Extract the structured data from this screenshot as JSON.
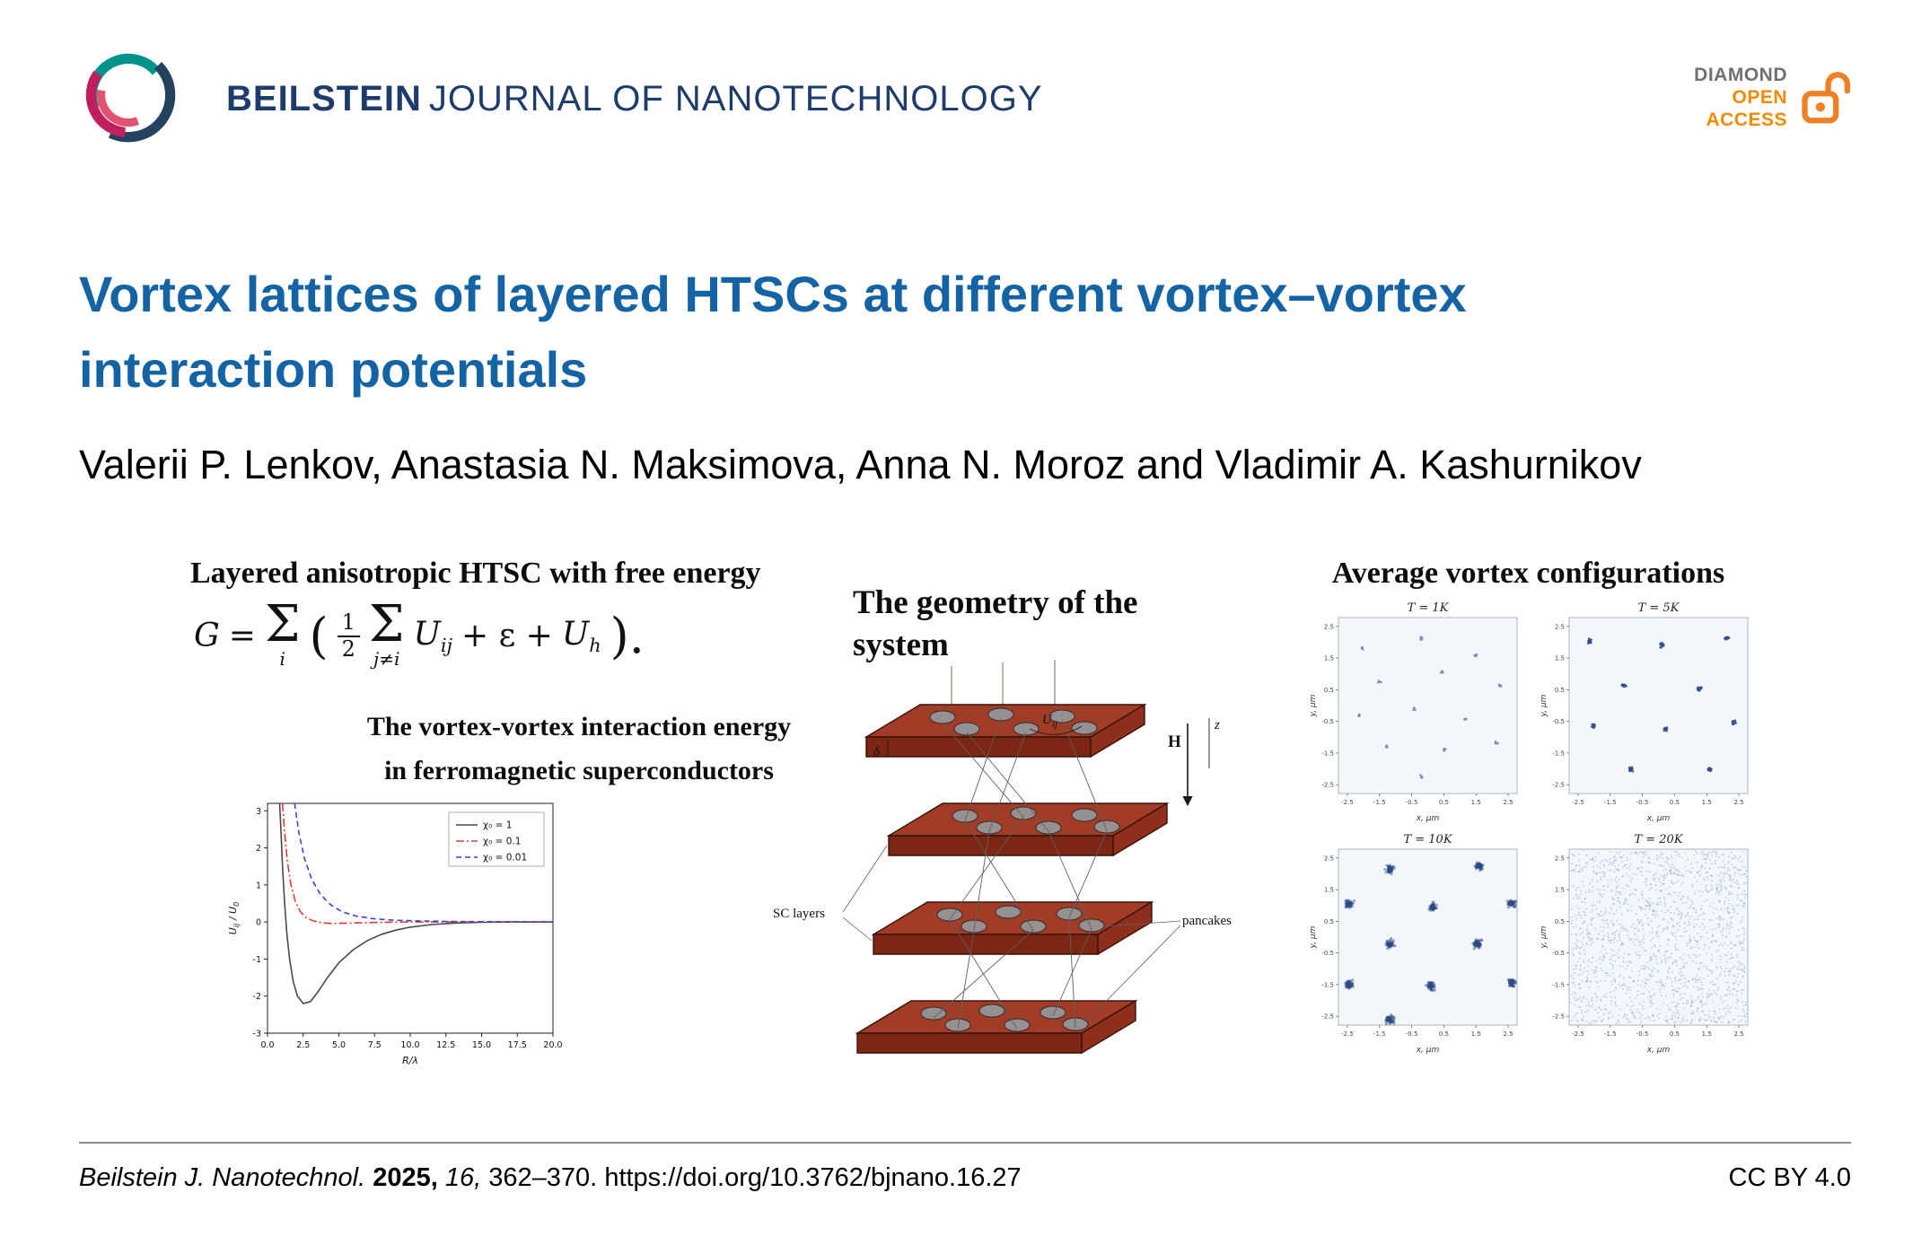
{
  "header": {
    "journal_bold": "BEILSTEIN",
    "journal_rest": "JOURNAL OF NANOTECHNOLOGY",
    "badge": {
      "diamond": "DIAMOND",
      "open": "OPEN",
      "access": "ACCESS"
    }
  },
  "title": {
    "lines": [
      "Vortex lattices of layered HTSCs at different vortex–vortex",
      "interaction potentials"
    ]
  },
  "authors": "Valerii P. Lenkov, Anastasia N. Maksimova, Anna N. Moroz and Vladimir A. Kashurnikov",
  "figure": {
    "left": {
      "heading": "Layered anisotropic HTSC with free energy",
      "formula": {
        "lhs": "G",
        "eq": "=",
        "sum1": "Σ",
        "sub1": "i",
        "open": "(",
        "num": "1",
        "den": "2",
        "sum2": "Σ",
        "sub2": "j≠i",
        "u1": "U",
        "u1sub": "ij",
        "mid": "+ ε +",
        "u2": "U",
        "u2sub": "h",
        "close": ")."
      },
      "caption_lines": [
        "The vortex-vortex interaction energy",
        "in ferromagnetic superconductors"
      ]
    },
    "middle": {
      "heading_lines": [
        "The geometry of the",
        "system"
      ],
      "labels": {
        "sc_layers": "SC layers",
        "pancakes": "pancakes",
        "field": "H",
        "z_axis": "z",
        "u_base": "U",
        "u_sub": "ij",
        "delta": "δ"
      }
    },
    "right": {
      "heading": "Average vortex configurations"
    }
  },
  "chart_data": [
    {
      "type": "line",
      "title": "",
      "xlabel": "R/λ",
      "ylabel_parts": [
        {
          "t": "U",
          "sub": false
        },
        {
          "t": "ij",
          "sub": true
        },
        {
          "t": " / U",
          "sub": false
        },
        {
          "t": "0",
          "sub": true
        }
      ],
      "xlim": [
        0,
        20
      ],
      "ylim": [
        -3,
        3.2
      ],
      "xticks": [
        0.0,
        2.5,
        5.0,
        7.5,
        10.0,
        12.5,
        15.0,
        17.5,
        20.0
      ],
      "yticks": [
        3,
        2,
        1,
        0,
        -1,
        -2,
        -3
      ],
      "legend_position": "upper right",
      "grid": false,
      "series": [
        {
          "name": "χ₀ = 1",
          "color": "#4a4a4a",
          "dash": "solid",
          "points": [
            [
              0.85,
              3.2
            ],
            [
              0.95,
              2.4
            ],
            [
              1.05,
              1.5
            ],
            [
              1.2,
              0.5
            ],
            [
              1.35,
              -0.3
            ],
            [
              1.55,
              -1.0
            ],
            [
              1.8,
              -1.6
            ],
            [
              2.1,
              -2.0
            ],
            [
              2.5,
              -2.2
            ],
            [
              3.0,
              -2.15
            ],
            [
              3.5,
              -1.9
            ],
            [
              4.2,
              -1.5
            ],
            [
              5.0,
              -1.1
            ],
            [
              6.0,
              -0.75
            ],
            [
              7.0,
              -0.5
            ],
            [
              8.0,
              -0.33
            ],
            [
              9.0,
              -0.22
            ],
            [
              10.0,
              -0.14
            ],
            [
              11.5,
              -0.07
            ],
            [
              13.0,
              -0.03
            ],
            [
              15.0,
              -0.01
            ],
            [
              17.0,
              0
            ],
            [
              20.0,
              0
            ]
          ]
        },
        {
          "name": "χ₀ = 0.1",
          "color": "#e03c31",
          "dash": "dashdot",
          "points": [
            [
              1.05,
              3.2
            ],
            [
              1.2,
              2.4
            ],
            [
              1.4,
              1.6
            ],
            [
              1.65,
              1.0
            ],
            [
              1.95,
              0.55
            ],
            [
              2.3,
              0.28
            ],
            [
              2.7,
              0.12
            ],
            [
              3.2,
              0.03
            ],
            [
              3.8,
              -0.02
            ],
            [
              4.5,
              -0.04
            ],
            [
              5.5,
              -0.03
            ],
            [
              6.5,
              -0.02
            ],
            [
              8.0,
              -0.01
            ],
            [
              10.0,
              0
            ],
            [
              20.0,
              0
            ]
          ]
        },
        {
          "name": "χ₀ = 0.01",
          "color": "#3544de",
          "dash": "dashed",
          "points": [
            [
              1.9,
              3.2
            ],
            [
              2.2,
              2.4
            ],
            [
              2.6,
              1.7
            ],
            [
              3.1,
              1.15
            ],
            [
              3.7,
              0.75
            ],
            [
              4.4,
              0.47
            ],
            [
              5.2,
              0.28
            ],
            [
              6.2,
              0.16
            ],
            [
              7.4,
              0.09
            ],
            [
              8.8,
              0.05
            ],
            [
              10.5,
              0.03
            ],
            [
              12.5,
              0.015
            ],
            [
              15.0,
              0.008
            ],
            [
              20.0,
              0
            ]
          ]
        }
      ]
    },
    {
      "type": "scatter",
      "title": "Average vortex configurations",
      "xlabel": "x, μm",
      "ylabel": "y, μm",
      "xticks": [
        -2.5,
        -1.5,
        -0.5,
        0.5,
        1.5,
        2.5
      ],
      "yticks": [
        2.5,
        1.5,
        0.5,
        -0.5,
        -1.5,
        -2.5
      ],
      "panels": [
        {
          "title": "T = 1K",
          "style": "sparse",
          "seed": 7,
          "centers": [
            [
              0.12,
              0.16
            ],
            [
              0.46,
              0.1
            ],
            [
              0.78,
              0.2
            ],
            [
              0.22,
              0.36
            ],
            [
              0.58,
              0.3
            ],
            [
              0.92,
              0.38
            ],
            [
              0.1,
              0.56
            ],
            [
              0.42,
              0.52
            ],
            [
              0.72,
              0.58
            ],
            [
              0.26,
              0.74
            ],
            [
              0.6,
              0.76
            ],
            [
              0.9,
              0.72
            ],
            [
              0.46,
              0.92
            ]
          ]
        },
        {
          "title": "T = 5K",
          "style": "marks",
          "seed": 13,
          "centers": [
            [
              0.1,
              0.12
            ],
            [
              0.52,
              0.14
            ],
            [
              0.9,
              0.1
            ],
            [
              0.3,
              0.38
            ],
            [
              0.74,
              0.4
            ],
            [
              0.12,
              0.62
            ],
            [
              0.54,
              0.64
            ],
            [
              0.94,
              0.6
            ],
            [
              0.34,
              0.88
            ],
            [
              0.8,
              0.88
            ]
          ]
        },
        {
          "title": "T = 10K",
          "style": "blobs",
          "seed": 21,
          "centers": [
            [
              0.28,
              0.1
            ],
            [
              0.8,
              0.08
            ],
            [
              0.04,
              0.3
            ],
            [
              0.53,
              0.32
            ],
            [
              0.99,
              0.3
            ],
            [
              0.28,
              0.54
            ],
            [
              0.79,
              0.54
            ],
            [
              0.04,
              0.78
            ],
            [
              0.52,
              0.79
            ],
            [
              0.99,
              0.77
            ],
            [
              0.28,
              0.99
            ]
          ]
        },
        {
          "title": "T = 20K",
          "style": "noise",
          "seed": 33,
          "count": 1700,
          "centers": []
        }
      ]
    }
  ],
  "footer": {
    "journal": "Beilstein J. Nanotechnol.",
    "year": "2025,",
    "volume": "16,",
    "pages": "362–370.",
    "doi": "https://doi.org/10.3762/bjnano.16.27",
    "license": "CC BY 4.0"
  }
}
